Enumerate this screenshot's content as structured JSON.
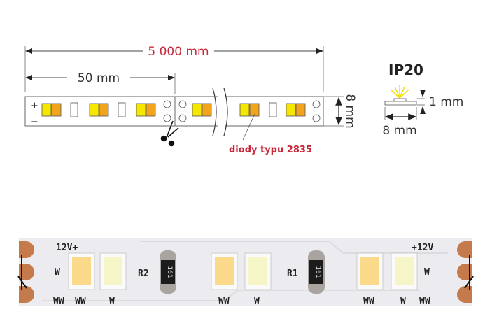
{
  "diagram": {
    "total_length": "5 000 mm",
    "segment_length": "50 mm",
    "width_label": "8 mm",
    "plus_sign": "+",
    "minus_sign": "−",
    "diode_label": "diody typu 2835",
    "ip_rating": "IP20",
    "cross_section": {
      "height": "1 mm",
      "width": "8 mm"
    }
  },
  "photo": {
    "left_voltage": "12V+",
    "right_voltage": "+12V",
    "resistors": [
      {
        "label": "R2",
        "code": "161"
      },
      {
        "label": "R1",
        "code": "161"
      }
    ],
    "led_labels": {
      "group1_side": "W",
      "group1_bottom": [
        "WW",
        "WW",
        "W"
      ],
      "group2_bottom": [
        "WW",
        "W"
      ],
      "group3_side": "W",
      "group3_bottom": [
        "WW",
        "W",
        "WW"
      ]
    }
  },
  "colors": {
    "accent_red": "#c8283c",
    "led_yellow": "#f7e600",
    "led_orange": "#f2a51c",
    "copper": "#c47a4a"
  }
}
